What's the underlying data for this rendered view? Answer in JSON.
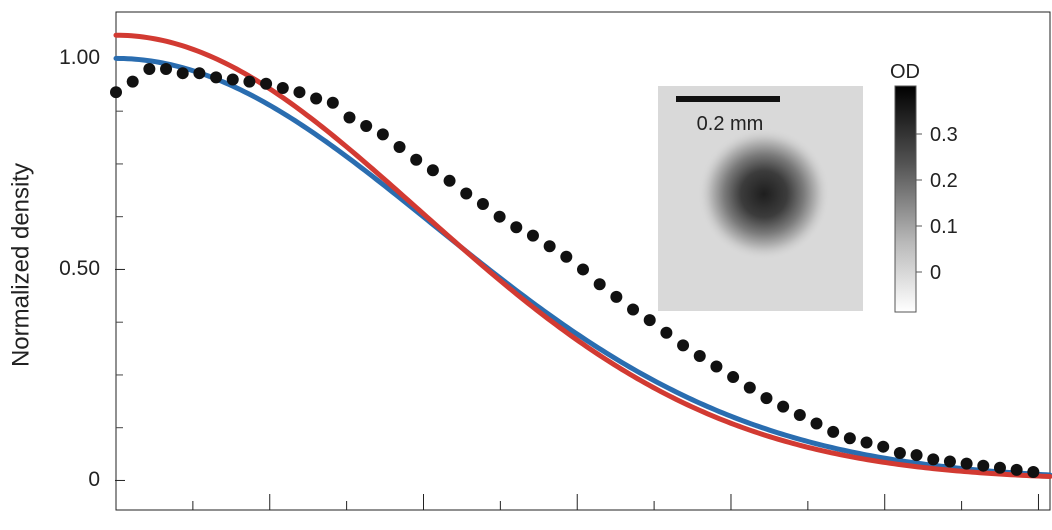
{
  "chart_data": {
    "type": "line",
    "title": "",
    "xlabel": "",
    "ylabel": "Normalized density",
    "ylim": [
      -0.07,
      1.11
    ],
    "xlim": [
      0,
      56
    ],
    "y_ticks": [
      {
        "value": 1.0,
        "label": "1.00"
      },
      {
        "value": 0.5,
        "label": "0.50"
      },
      {
        "value": 0.0,
        "label": "0"
      }
    ],
    "y_minor_ticks": [
      0.125,
      0.25,
      0.375,
      0.625,
      0.75,
      0.875
    ],
    "x_tick_count": 12,
    "grid": false,
    "series": [
      {
        "style": "markers",
        "color": "#111111",
        "x": [
          0,
          1,
          2,
          3,
          4,
          5,
          6,
          7,
          8,
          9,
          10,
          11,
          12,
          13,
          14,
          15,
          16,
          17,
          18,
          19,
          20,
          21,
          22,
          23,
          24,
          25,
          26,
          27,
          28,
          29,
          30,
          31,
          32,
          33,
          34,
          35,
          36,
          37,
          38,
          39,
          40,
          41,
          42,
          43,
          44,
          45,
          46,
          47,
          48,
          49,
          50,
          51,
          52,
          53,
          54,
          55
        ],
        "values": [
          0.92,
          0.945,
          0.975,
          0.975,
          0.965,
          0.965,
          0.955,
          0.95,
          0.945,
          0.94,
          0.93,
          0.92,
          0.905,
          0.895,
          0.86,
          0.84,
          0.82,
          0.79,
          0.76,
          0.735,
          0.71,
          0.68,
          0.655,
          0.625,
          0.6,
          0.58,
          0.555,
          0.53,
          0.5,
          0.465,
          0.435,
          0.405,
          0.38,
          0.35,
          0.32,
          0.295,
          0.27,
          0.245,
          0.22,
          0.195,
          0.175,
          0.155,
          0.135,
          0.115,
          0.1,
          0.09,
          0.08,
          0.065,
          0.06,
          0.05,
          0.045,
          0.04,
          0.035,
          0.03,
          0.025,
          0.02
        ]
      },
      {
        "style": "line",
        "color": "#2a6db0",
        "model": "gaussian",
        "amplitude": 1.0,
        "center": 0,
        "sigma": 19.0,
        "offset": 0.0
      },
      {
        "style": "line",
        "color": "#d23a32",
        "model": "gaussian",
        "amplitude": 1.055,
        "center": 0,
        "sigma": 18.2,
        "offset": 0.0
      }
    ],
    "inset": {
      "scale_bar_label": "0.2 mm",
      "colorbar_title": "OD",
      "colorbar_ticks": [
        "0.3",
        "0.2",
        "0.1",
        "0"
      ]
    }
  }
}
